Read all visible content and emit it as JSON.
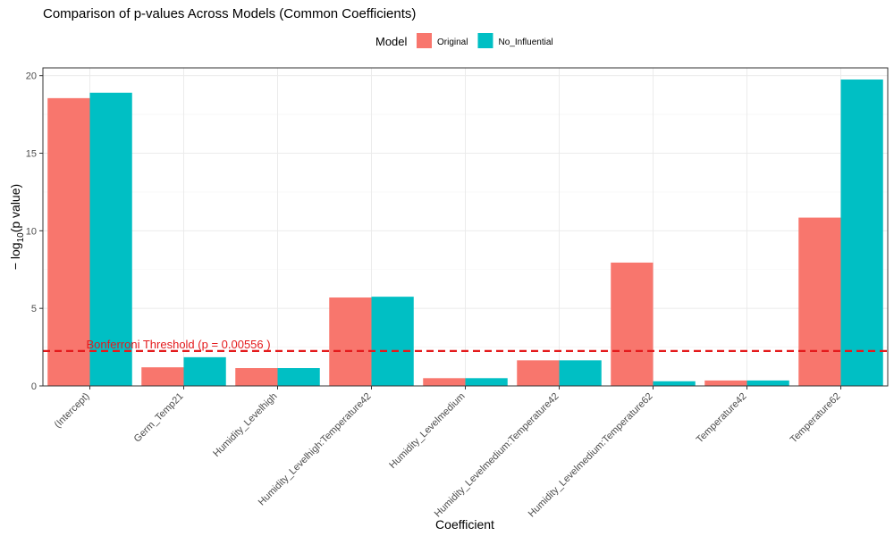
{
  "chart_data": {
    "type": "bar",
    "title": "Comparison of p-values Across Models (Common Coefficients)",
    "xlabel": "Coefficient",
    "ylabel": {
      "prefix": "− log",
      "subscript": "10",
      "suffix": "(p value)"
    },
    "ylim": [
      0,
      20.5
    ],
    "yticks": [
      0,
      5,
      10,
      15,
      20
    ],
    "grid": true,
    "legend": {
      "title": "Model",
      "position": "top-center"
    },
    "categories": [
      "(Intercept)",
      "Germ_Temp21",
      "Humidity_Levelhigh",
      "Humidity_Levelhigh:Temperature42",
      "Humidity_Levelmedium",
      "Humidity_Levelmedium:Temperature42",
      "Humidity_Levelmedium:Temperature62",
      "Temperature42",
      "Temperature62"
    ],
    "series": [
      {
        "name": "Original",
        "color": "#F8766D",
        "values": [
          18.55,
          1.2,
          1.15,
          5.7,
          0.5,
          1.65,
          7.95,
          0.35,
          10.85
        ]
      },
      {
        "name": "No_Influential",
        "color": "#00BFC4",
        "values": [
          18.9,
          1.85,
          1.15,
          5.75,
          0.5,
          1.65,
          0.3,
          0.35,
          19.75
        ]
      }
    ],
    "annotations": [
      {
        "type": "hline",
        "y": 2.255,
        "color": "#E41A1C",
        "style": "dashed",
        "label": "Bonferroni Threshold (p = 0.00556 )"
      }
    ]
  }
}
